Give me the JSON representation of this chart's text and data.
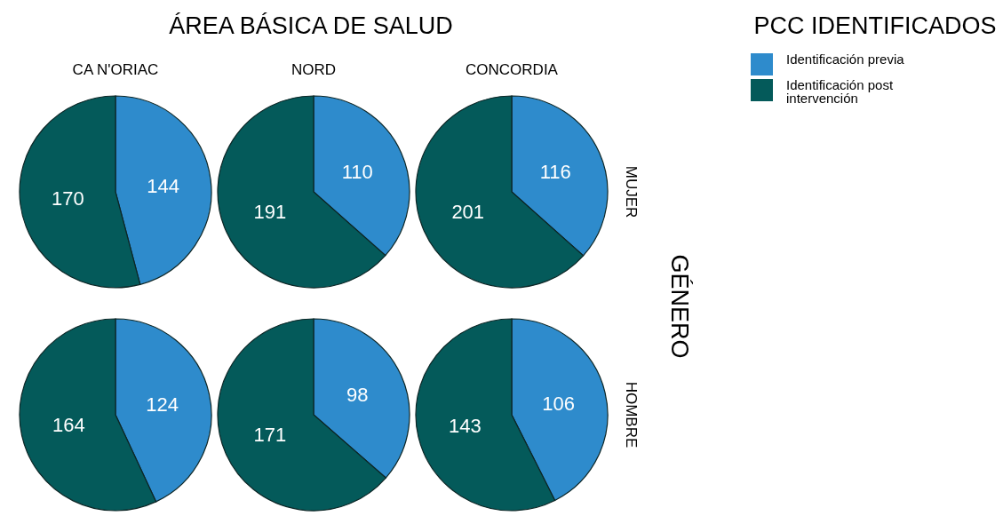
{
  "chart_data": [
    {
      "type": "pie",
      "title": "CA N'ORIAC",
      "categories": [
        "Identificación previa",
        "Identificación post intervención"
      ],
      "values": [
        144,
        170
      ],
      "colors": [
        "#2e8bcc",
        "#045a5a"
      ],
      "data_labels": true,
      "legend": "right",
      "legend_title": "PCC IDENTIFICADOS",
      "annotations": [
        "ÁREA BÁSICA DE SALUD",
        "GÉNERO"
      ]
    },
    {
      "type": "pie",
      "title": "NORD",
      "categories": [
        null,
        null
      ],
      "values": [
        110,
        191
      ],
      "colors": [
        "#2e8bcc",
        "#045a5a"
      ],
      "data_labels": true
    },
    {
      "type": "pie",
      "title": "CONCORDIA",
      "ylabel": "MUJER",
      "categories": [
        null,
        null
      ],
      "values": [
        116,
        201
      ],
      "colors": [
        "#2e8bcc",
        "#045a5a"
      ],
      "data_labels": true
    },
    {
      "type": "pie",
      "categories": [
        null,
        null
      ],
      "values": [
        124,
        164
      ],
      "colors": [
        "#2e8bcc",
        "#045a5a"
      ],
      "data_labels": true
    },
    {
      "type": "pie",
      "categories": [
        null,
        null
      ],
      "values": [
        98,
        171
      ],
      "colors": [
        "#2e8bcc",
        "#045a5a"
      ],
      "data_labels": true
    },
    {
      "type": "pie",
      "ylabel": "HOMBRE",
      "categories": [
        null,
        null
      ],
      "values": [
        106,
        143
      ],
      "colors": [
        "#2e8bcc",
        "#045a5a"
      ],
      "data_labels": true
    }
  ]
}
